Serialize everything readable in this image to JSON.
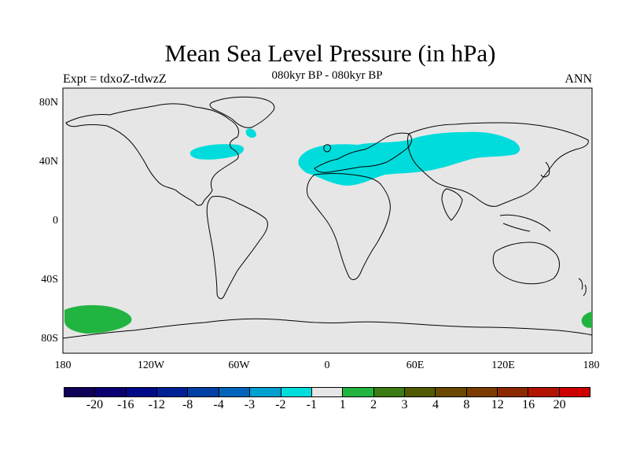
{
  "header": {
    "title": "Mean Sea Level Pressure (in hPa)",
    "subtitle": "080kyr BP - 080kyr BP",
    "left_label": "Expt = tdxoZ-tdwzZ",
    "right_label": "ANN"
  },
  "map": {
    "background_color": "#e6e6e6",
    "lat_labels": [
      "80N",
      "40N",
      "0",
      "40S",
      "80S"
    ],
    "lon_labels": [
      "180",
      "120W",
      "60W",
      "0",
      "60E",
      "120E",
      "180"
    ],
    "anomaly_regions": [
      {
        "name": "europe-asia-negative",
        "level": "-2 to -1",
        "color": "#00dcdc"
      },
      {
        "name": "north-america-negative",
        "level": "-2 to -1",
        "color": "#00dcdc"
      },
      {
        "name": "greenland-negative",
        "level": "-2 to -1",
        "color": "#00dcdc"
      },
      {
        "name": "south-pacific-positive",
        "level": "1 to 2",
        "color": "#22b440"
      }
    ]
  },
  "colorbar": {
    "colors": [
      "#10005a",
      "#0a0070",
      "#000a88",
      "#002096",
      "#0040a4",
      "#0064bc",
      "#00a0d0",
      "#00dcdc",
      "#e6e6e6",
      "#22b440",
      "#3c7c14",
      "#505a00",
      "#6a4800",
      "#7a3c00",
      "#8c2800",
      "#b01400",
      "#cc0000"
    ],
    "labels": [
      "-20",
      "-16",
      "-12",
      "-8",
      "-4",
      "-3",
      "-2",
      "-1",
      "1",
      "2",
      "3",
      "4",
      "8",
      "12",
      "16",
      "20"
    ]
  }
}
